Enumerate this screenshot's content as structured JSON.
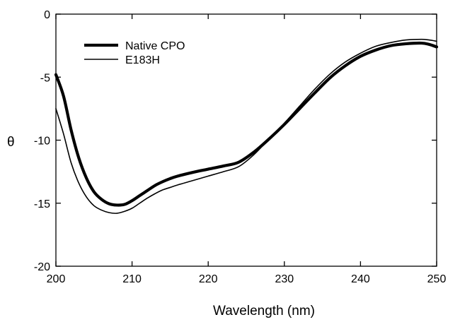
{
  "chart_data": {
    "type": "line",
    "title": "",
    "xlabel": "Wavelength (nm)",
    "ylabel": "θ",
    "xlim": [
      200,
      250
    ],
    "ylim": [
      -20,
      0
    ],
    "x_ticks": [
      200,
      210,
      220,
      230,
      240,
      250
    ],
    "y_ticks": [
      0,
      -5,
      -10,
      -15,
      -20
    ],
    "x_tick_labels": [
      "200",
      "210",
      "220",
      "230",
      "240",
      "250"
    ],
    "y_tick_labels": [
      "0",
      "-5",
      "-10",
      "-15",
      "-20"
    ],
    "grid": false,
    "legend_position": "top-left",
    "series": [
      {
        "name": "Native CPO",
        "color": "#000000",
        "line_style": "thick",
        "x": [
          200,
          201,
          202,
          203,
          204,
          205,
          206,
          207,
          208,
          209,
          210,
          211,
          212,
          213,
          214,
          215,
          216,
          218,
          220,
          222,
          224,
          226,
          228,
          230,
          232,
          234,
          236,
          238,
          240,
          242,
          244,
          246,
          248,
          249,
          250
        ],
        "y": [
          -4.8,
          -6.5,
          -9.2,
          -11.4,
          -13.0,
          -14.1,
          -14.7,
          -15.05,
          -15.15,
          -15.1,
          -14.8,
          -14.4,
          -14.0,
          -13.6,
          -13.3,
          -13.05,
          -12.85,
          -12.55,
          -12.3,
          -12.05,
          -11.75,
          -10.95,
          -9.9,
          -8.75,
          -7.5,
          -6.25,
          -5.05,
          -4.1,
          -3.35,
          -2.85,
          -2.5,
          -2.35,
          -2.3,
          -2.4,
          -2.6
        ]
      },
      {
        "name": "E183H",
        "color": "#000000",
        "line_style": "thin",
        "x": [
          200,
          201,
          202,
          203,
          204,
          205,
          206,
          207,
          208,
          209,
          210,
          211,
          212,
          213,
          214,
          215,
          216,
          218,
          220,
          222,
          224,
          226,
          228,
          230,
          232,
          234,
          236,
          238,
          240,
          242,
          244,
          246,
          248,
          249,
          250
        ],
        "y": [
          -7.5,
          -9.5,
          -11.8,
          -13.4,
          -14.5,
          -15.2,
          -15.55,
          -15.75,
          -15.8,
          -15.65,
          -15.4,
          -15.0,
          -14.6,
          -14.25,
          -13.95,
          -13.75,
          -13.55,
          -13.2,
          -12.85,
          -12.5,
          -12.1,
          -11.15,
          -9.9,
          -8.65,
          -7.3,
          -5.95,
          -4.75,
          -3.8,
          -3.1,
          -2.55,
          -2.25,
          -2.05,
          -2.0,
          -2.05,
          -2.15
        ]
      }
    ]
  }
}
